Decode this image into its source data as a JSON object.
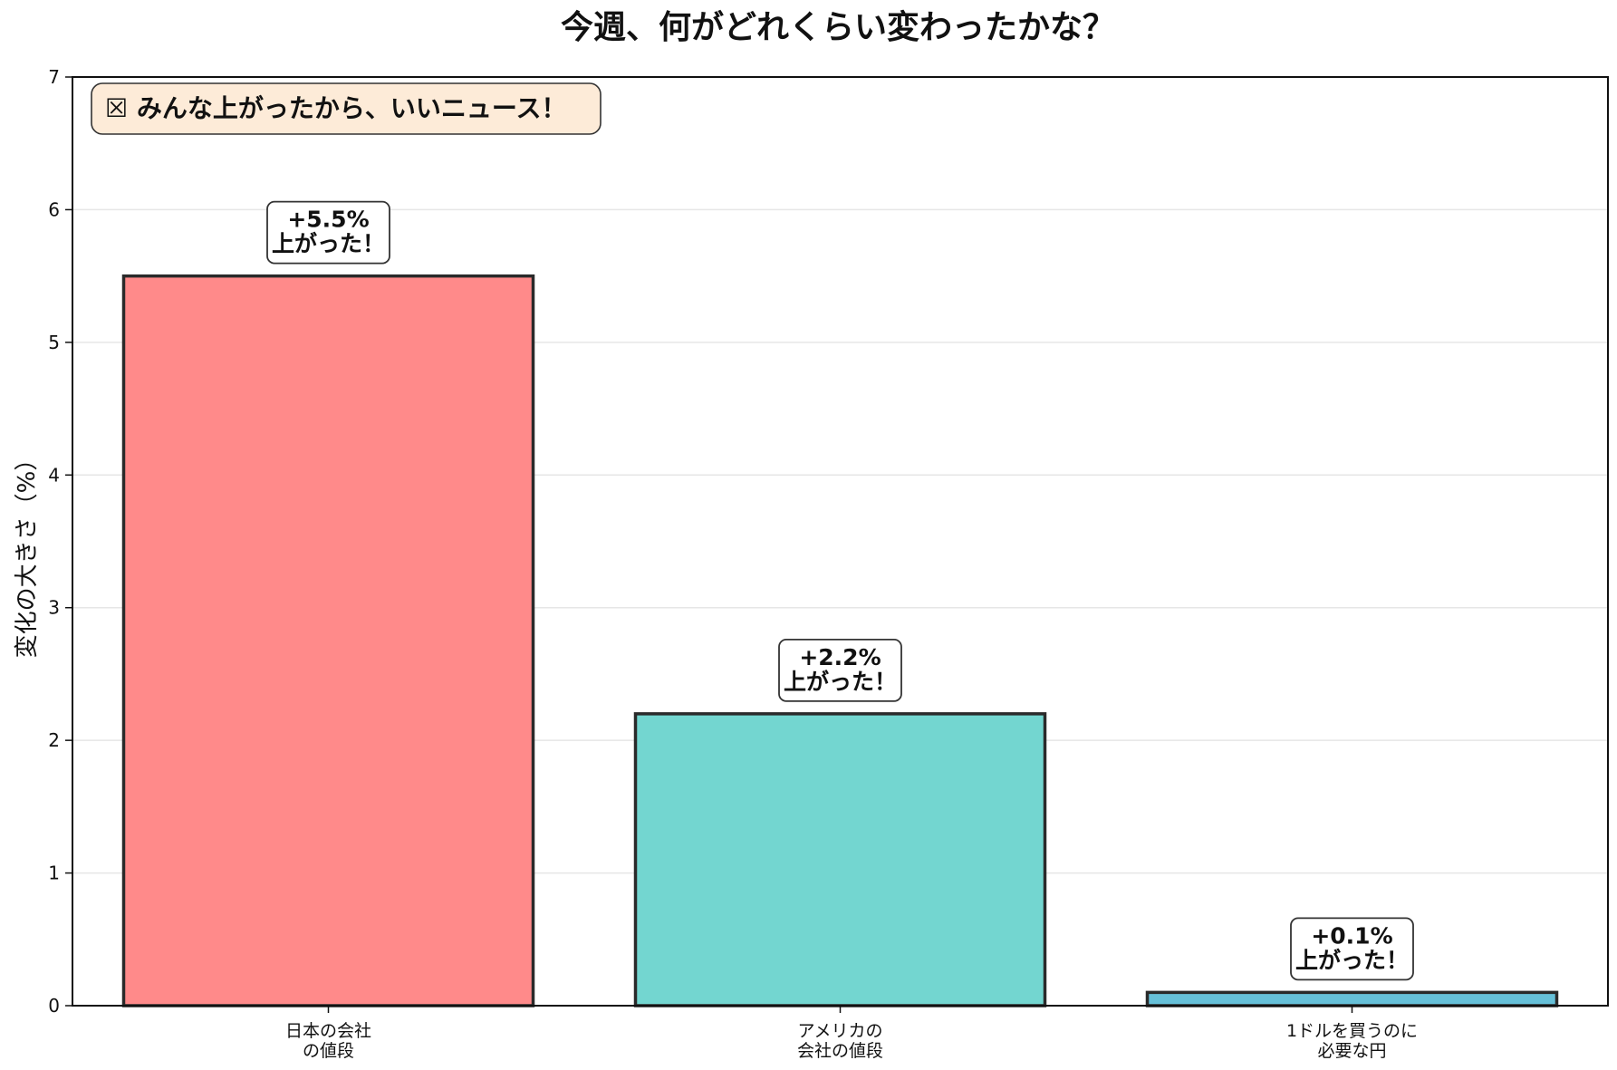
{
  "chart_data": {
    "type": "bar",
    "title": "今週、何がどれくらい変わったかな？",
    "xlabel": "",
    "ylabel": "変化の大きさ（%）",
    "ylim": [
      0,
      7
    ],
    "yticks": [
      "0",
      "1",
      "2",
      "3",
      "4",
      "5",
      "6",
      "7"
    ],
    "grid": "y-axis, light gray",
    "categories": [
      [
        "日本の会社",
        "の値段"
      ],
      [
        "アメリカの",
        "会社の値段"
      ],
      [
        "1ドルを買うのに",
        "必要な円"
      ]
    ],
    "values": [
      5.5,
      2.2,
      0.1
    ],
    "data_labels": [
      [
        "+5.5%",
        "上がった！"
      ],
      [
        "+2.2%",
        "上がった！"
      ],
      [
        "+0.1%",
        "上がった！"
      ]
    ],
    "colors": [
      "#FF8A8A",
      "#73D6D0",
      "#66C0D8"
    ],
    "annotation": "☒ みんな上がったから、いいニュース！",
    "annotation_bg": "#FDEBD8",
    "legend": "none"
  }
}
